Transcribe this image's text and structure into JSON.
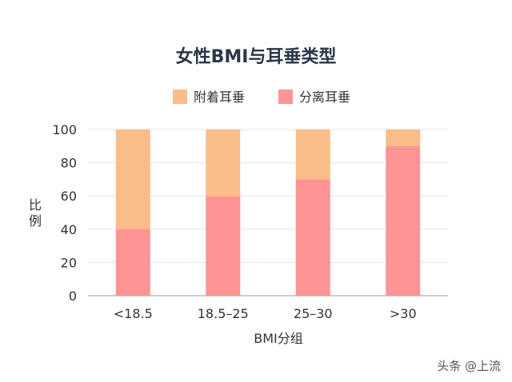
{
  "chart_data": {
    "type": "bar",
    "stacked": true,
    "title": "女性BMI与耳垂类型",
    "xlabel": "BMI分组",
    "ylabel": "比例",
    "ylim": [
      0,
      100
    ],
    "yticks": [
      0,
      20,
      40,
      60,
      80,
      100
    ],
    "grid": true,
    "legend_position": "top",
    "categories": [
      "<18.5",
      "18.5–25",
      "25–30",
      ">30"
    ],
    "series": [
      {
        "name": "分离耳垂",
        "values": [
          40,
          60,
          70,
          90
        ],
        "color": "#ff9494"
      },
      {
        "name": "附着耳垂",
        "values": [
          60,
          40,
          30,
          10
        ],
        "color": "#fabd8a"
      }
    ]
  },
  "watermark": "头条 @上流"
}
